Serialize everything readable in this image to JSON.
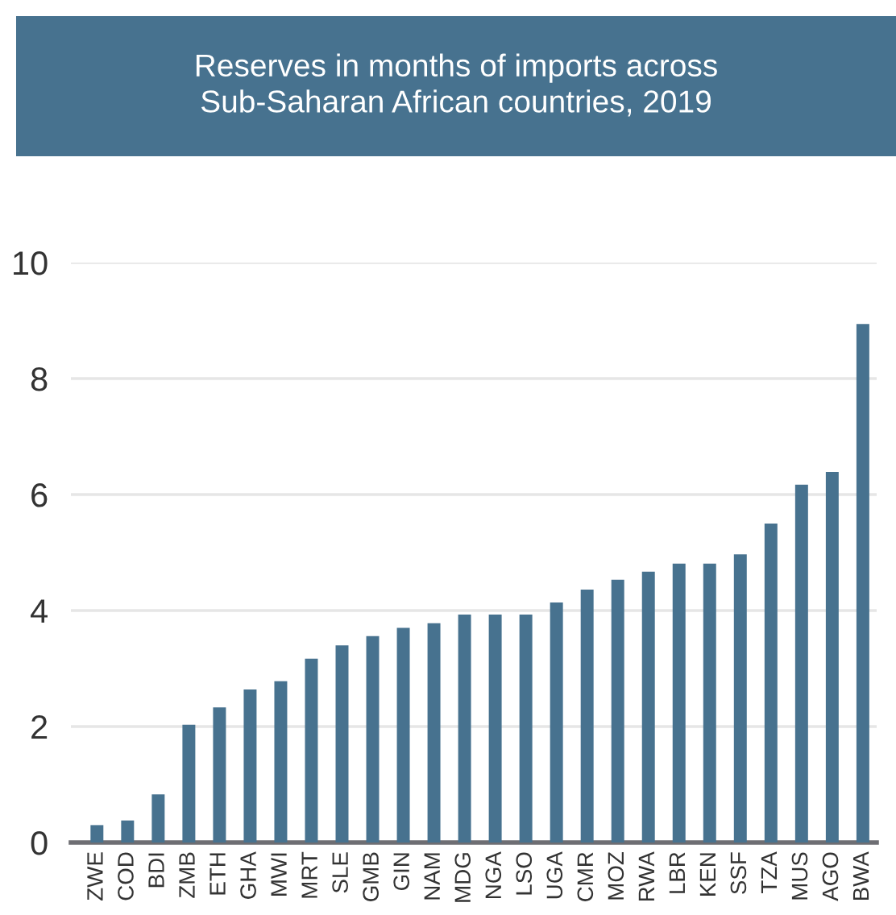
{
  "chart_data": {
    "type": "bar",
    "title": "Reserves in months of imports across\nSub-Saharan African countries, 2019",
    "categories": [
      "ZWE",
      "COD",
      "BDI",
      "ZMB",
      "ETH",
      "GHA",
      "MWI",
      "MRT",
      "SLE",
      "GMB",
      "GIN",
      "NAM",
      "MDG",
      "NGA",
      "LSO",
      "UGA",
      "CMR",
      "MOZ",
      "RWA",
      "LBR",
      "KEN",
      "SSF",
      "TZA",
      "MUS",
      "AGO",
      "BWA"
    ],
    "values": [
      0.3,
      0.38,
      0.83,
      2.03,
      2.33,
      2.64,
      2.78,
      3.17,
      3.4,
      3.56,
      3.7,
      3.78,
      3.93,
      3.93,
      3.93,
      4.14,
      4.36,
      4.53,
      4.67,
      4.81,
      4.81,
      4.97,
      5.5,
      6.17,
      6.39,
      8.94
    ],
    "color": "#47728f",
    "ylim": [
      0,
      10
    ],
    "yticks": [
      0,
      2,
      4,
      6,
      8,
      10
    ],
    "grid": "y"
  }
}
